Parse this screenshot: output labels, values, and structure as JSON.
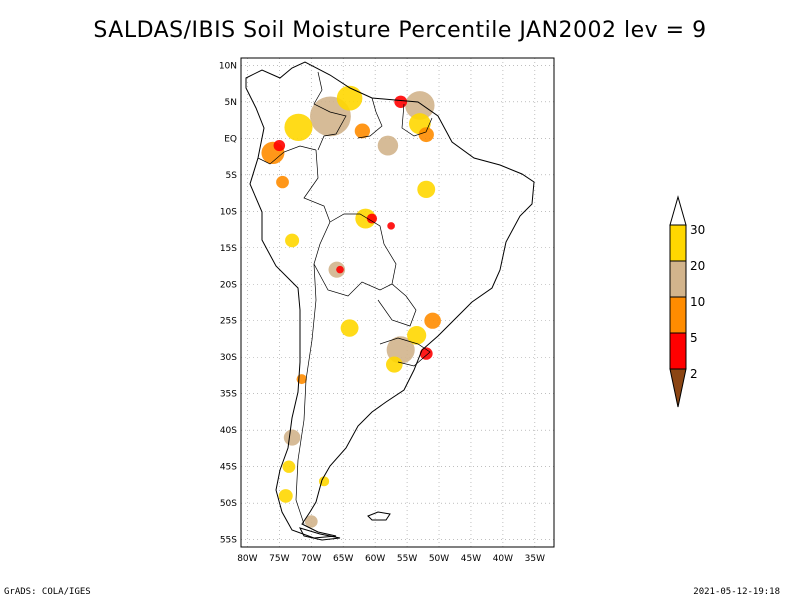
{
  "title": "SALDAS/IBIS Soil Moisture Percentile JAN2002 lev = 9",
  "footer": {
    "left": "GrADS: COLA/IGES",
    "right": "2021-05-12-19:18"
  },
  "map": {
    "region": "South America",
    "lon_range": [
      -81,
      -32
    ],
    "lat_range": [
      -56,
      11
    ],
    "lat_ticks": [
      {
        "value": 10,
        "label": "10N"
      },
      {
        "value": 5,
        "label": "5N"
      },
      {
        "value": 0,
        "label": "EQ"
      },
      {
        "value": -5,
        "label": "5S"
      },
      {
        "value": -10,
        "label": "10S"
      },
      {
        "value": -15,
        "label": "15S"
      },
      {
        "value": -20,
        "label": "20S"
      },
      {
        "value": -25,
        "label": "25S"
      },
      {
        "value": -30,
        "label": "30S"
      },
      {
        "value": -35,
        "label": "35S"
      },
      {
        "value": -40,
        "label": "40S"
      },
      {
        "value": -45,
        "label": "45S"
      },
      {
        "value": -50,
        "label": "50S"
      },
      {
        "value": -55,
        "label": "55S"
      }
    ],
    "lon_ticks": [
      {
        "value": -80,
        "label": "80W"
      },
      {
        "value": -75,
        "label": "75W"
      },
      {
        "value": -70,
        "label": "70W"
      },
      {
        "value": -65,
        "label": "65W"
      },
      {
        "value": -60,
        "label": "60W"
      },
      {
        "value": -55,
        "label": "55W"
      },
      {
        "value": -50,
        "label": "50W"
      },
      {
        "value": -45,
        "label": "45W"
      },
      {
        "value": -40,
        "label": "40W"
      },
      {
        "value": -35,
        "label": "35W"
      }
    ],
    "blobs": [
      {
        "lon": -67,
        "lat": 3,
        "r": 3.2,
        "level": "10-20"
      },
      {
        "lon": -72,
        "lat": 1.5,
        "r": 2.2,
        "level": "20-30"
      },
      {
        "lon": -64,
        "lat": 5.5,
        "r": 2,
        "level": "20-30"
      },
      {
        "lon": -62,
        "lat": 1,
        "r": 1.2,
        "level": "5-10"
      },
      {
        "lon": -76,
        "lat": -2,
        "r": 1.8,
        "level": "5-10"
      },
      {
        "lon": -75,
        "lat": -1,
        "r": 0.9,
        "level": "2-5"
      },
      {
        "lon": -74.5,
        "lat": -6,
        "r": 1,
        "level": "5-10"
      },
      {
        "lon": -53,
        "lat": 4.5,
        "r": 2.3,
        "level": "10-20"
      },
      {
        "lon": -53,
        "lat": 2,
        "r": 1.7,
        "level": "20-30"
      },
      {
        "lon": -52,
        "lat": 0.5,
        "r": 1.2,
        "level": "5-10"
      },
      {
        "lon": -56,
        "lat": 5,
        "r": 1,
        "level": "2-5"
      },
      {
        "lon": -58,
        "lat": -1,
        "r": 1.6,
        "level": "10-20"
      },
      {
        "lon": -52,
        "lat": -7,
        "r": 1.4,
        "level": "20-30"
      },
      {
        "lon": -61.5,
        "lat": -11,
        "r": 1.6,
        "level": "20-30"
      },
      {
        "lon": -60.5,
        "lat": -11,
        "r": 0.8,
        "level": "2-5"
      },
      {
        "lon": -57.5,
        "lat": -12,
        "r": 0.6,
        "level": "2-5"
      },
      {
        "lon": -66,
        "lat": -18,
        "r": 1.3,
        "level": "10-20"
      },
      {
        "lon": -65.5,
        "lat": -18,
        "r": 0.6,
        "level": "2-5"
      },
      {
        "lon": -73,
        "lat": -14,
        "r": 1.1,
        "level": "20-30"
      },
      {
        "lon": -56,
        "lat": -29,
        "r": 2.2,
        "level": "10-20"
      },
      {
        "lon": -53.5,
        "lat": -27,
        "r": 1.5,
        "level": "20-30"
      },
      {
        "lon": -52,
        "lat": -29.5,
        "r": 1,
        "level": "2-5"
      },
      {
        "lon": -51,
        "lat": -25,
        "r": 1.3,
        "level": "5-10"
      },
      {
        "lon": -57,
        "lat": -31,
        "r": 1.3,
        "level": "20-30"
      },
      {
        "lon": -64,
        "lat": -26,
        "r": 1.4,
        "level": "20-30"
      },
      {
        "lon": -71.5,
        "lat": -33,
        "r": 0.8,
        "level": "5-10"
      },
      {
        "lon": -73,
        "lat": -41,
        "r": 1.3,
        "level": "10-20"
      },
      {
        "lon": -73.5,
        "lat": -45,
        "r": 1,
        "level": "20-30"
      },
      {
        "lon": -74,
        "lat": -49,
        "r": 1.1,
        "level": "20-30"
      },
      {
        "lon": -70,
        "lat": -52.5,
        "r": 1,
        "level": "10-20"
      },
      {
        "lon": -68,
        "lat": -47,
        "r": 0.8,
        "level": "20-30"
      }
    ]
  },
  "colorbar": {
    "labels": [
      "30",
      "20",
      "10",
      "5",
      "2"
    ],
    "colors": {
      "20-30": "#FFD700",
      "10-20": "#D2B48C",
      "5-10": "#FF8C00",
      "2-5": "#FF0000",
      "0-2": "#8B4513",
      "above": "#FFFFFF"
    }
  }
}
